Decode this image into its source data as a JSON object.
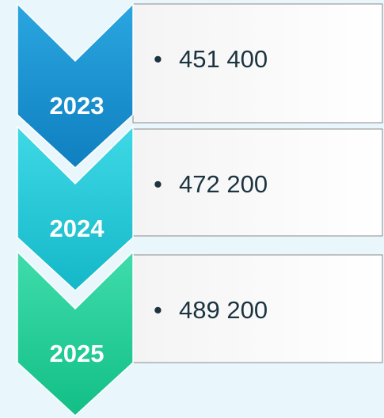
{
  "items": [
    {
      "label": "2023",
      "text": "451 400"
    },
    {
      "label": "2024",
      "text": "472 200"
    },
    {
      "label": "2025",
      "text": "489 200"
    }
  ]
}
